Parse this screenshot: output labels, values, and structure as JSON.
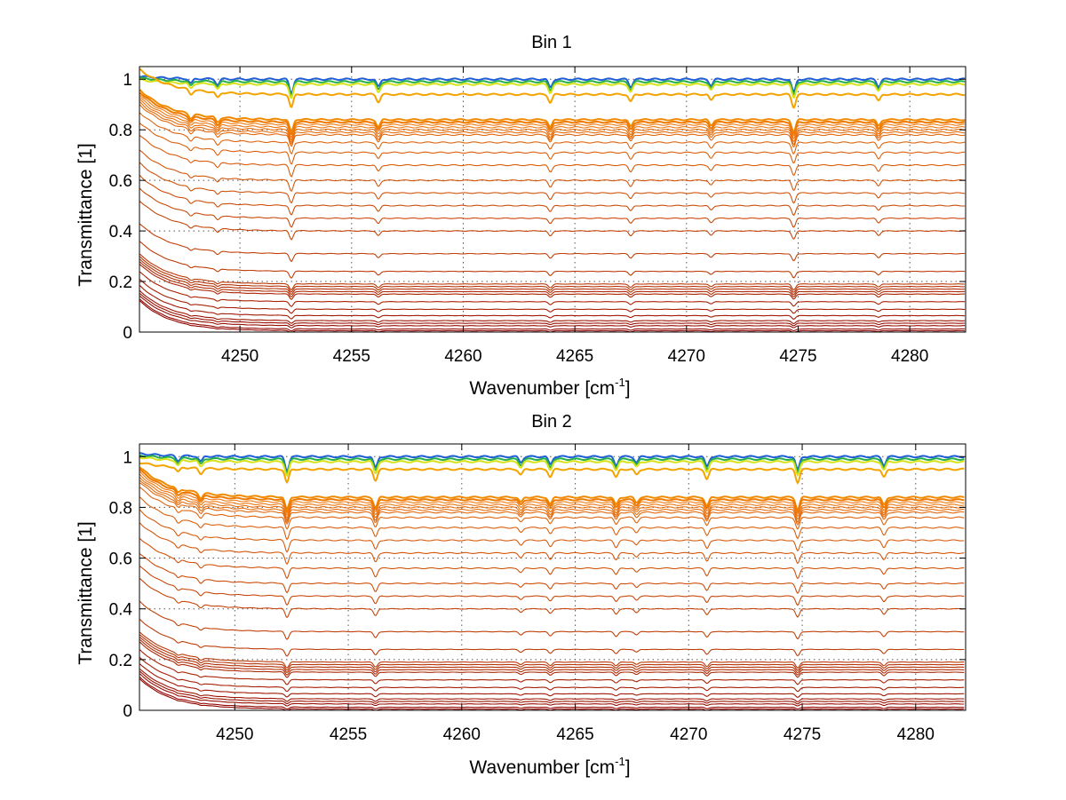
{
  "chart_data": [
    {
      "type": "line",
      "title": "Bin 1",
      "xlabel": "Wavenumber [cm",
      "xlabel_sup": "-1",
      "xlabel_end": "]",
      "ylabel": "Transmittance [1]",
      "xlim": [
        4245.5,
        4282.5
      ],
      "ylim": [
        0,
        1.05
      ],
      "xticks": [
        4250,
        4255,
        4260,
        4265,
        4270,
        4275,
        4280
      ],
      "yticks": [
        0,
        0.2,
        0.4,
        0.6,
        0.8,
        1
      ],
      "ytick_labels": [
        "0",
        "0.2",
        "0.4",
        "0.6",
        "0.8",
        "1"
      ],
      "grid": "dotted",
      "absorption_lines": [
        {
          "x": 4247.8,
          "depth": 0.35
        },
        {
          "x": 4249.0,
          "depth": 0.4
        },
        {
          "x": 4252.3,
          "depth": 1.0
        },
        {
          "x": 4256.2,
          "depth": 0.55
        },
        {
          "x": 4263.9,
          "depth": 0.6
        },
        {
          "x": 4267.5,
          "depth": 0.55
        },
        {
          "x": 4271.1,
          "depth": 0.45
        },
        {
          "x": 4274.8,
          "depth": 0.95
        },
        {
          "x": 4278.6,
          "depth": 0.5
        }
      ],
      "series_plateaus": [
        1.0,
        0.99,
        0.98,
        0.94,
        0.84,
        0.83,
        0.82,
        0.81,
        0.8,
        0.79,
        0.78,
        0.75,
        0.71,
        0.66,
        0.6,
        0.55,
        0.5,
        0.45,
        0.4,
        0.31,
        0.24,
        0.19,
        0.18,
        0.17,
        0.16,
        0.15,
        0.12,
        0.09,
        0.065,
        0.045,
        0.035,
        0.025,
        0.012,
        0.005
      ]
    },
    {
      "type": "line",
      "title": "Bin 2",
      "xlabel": "Wavenumber [cm",
      "xlabel_sup": "-1",
      "xlabel_end": "]",
      "ylabel": "Transmittance [1]",
      "xlim": [
        4245.8,
        4282.2
      ],
      "ylim": [
        0,
        1.05
      ],
      "xticks": [
        4250,
        4255,
        4260,
        4265,
        4270,
        4275,
        4280
      ],
      "yticks": [
        0,
        0.2,
        0.4,
        0.6,
        0.8,
        1
      ],
      "ytick_labels": [
        "0",
        "0.2",
        "0.4",
        "0.6",
        "0.8",
        "1"
      ],
      "grid": "dotted",
      "absorption_lines": [
        {
          "x": 4247.5,
          "depth": 0.35
        },
        {
          "x": 4248.5,
          "depth": 0.4
        },
        {
          "x": 4252.3,
          "depth": 1.0
        },
        {
          "x": 4256.2,
          "depth": 0.8
        },
        {
          "x": 4262.6,
          "depth": 0.4
        },
        {
          "x": 4263.9,
          "depth": 0.55
        },
        {
          "x": 4266.8,
          "depth": 0.6
        },
        {
          "x": 4267.7,
          "depth": 0.4
        },
        {
          "x": 4270.8,
          "depth": 0.7
        },
        {
          "x": 4274.8,
          "depth": 0.95
        },
        {
          "x": 4278.6,
          "depth": 0.6
        }
      ],
      "series_plateaus": [
        1.0,
        0.99,
        0.98,
        0.95,
        0.84,
        0.83,
        0.82,
        0.81,
        0.8,
        0.79,
        0.78,
        0.76,
        0.72,
        0.67,
        0.62,
        0.56,
        0.5,
        0.45,
        0.4,
        0.31,
        0.24,
        0.19,
        0.18,
        0.17,
        0.16,
        0.15,
        0.12,
        0.09,
        0.065,
        0.045,
        0.035,
        0.025,
        0.012,
        0.005
      ]
    }
  ],
  "colors": {
    "top_cluster": [
      "#1f5fd8",
      "#27b04a",
      "#d7e21a",
      "#f4a300",
      "#f08a00",
      "#ef7a00"
    ],
    "line_gradient_start": "#f07a10",
    "line_gradient_end": "#8c0000",
    "axis": "#000000",
    "grid": "#555555"
  }
}
